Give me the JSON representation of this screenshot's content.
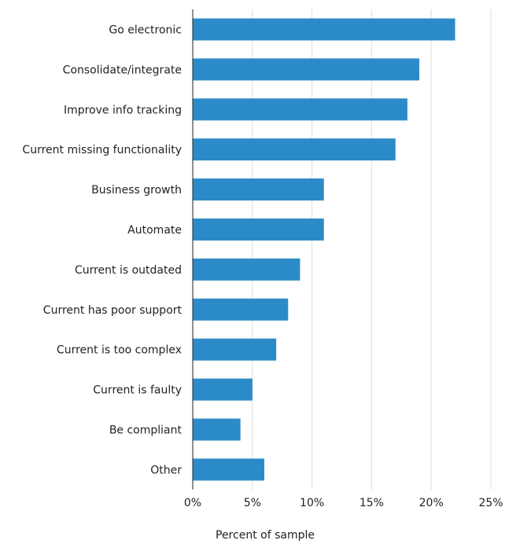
{
  "chart_data": {
    "type": "bar",
    "orientation": "horizontal",
    "categories": [
      "Go electronic",
      "Consolidate/integrate",
      "Improve info tracking",
      "Current missing functionality",
      "Business growth",
      "Automate",
      "Current is outdated",
      "Current has poor support",
      "Current is too complex",
      "Current is faulty",
      "Be compliant",
      "Other"
    ],
    "values": [
      22,
      19,
      18,
      17,
      11,
      11,
      9,
      8,
      7,
      5,
      4,
      6
    ],
    "xlim": [
      0,
      25
    ],
    "xticks": [
      "0%",
      "5%",
      "10%",
      "15%",
      "20%",
      "25%"
    ],
    "xlabel": "Percent of sample",
    "ylabel": "",
    "grid": "vertical",
    "bar_color": "#2b8bc8",
    "grid_color": "#dddddd",
    "axis_color": "#222222"
  }
}
